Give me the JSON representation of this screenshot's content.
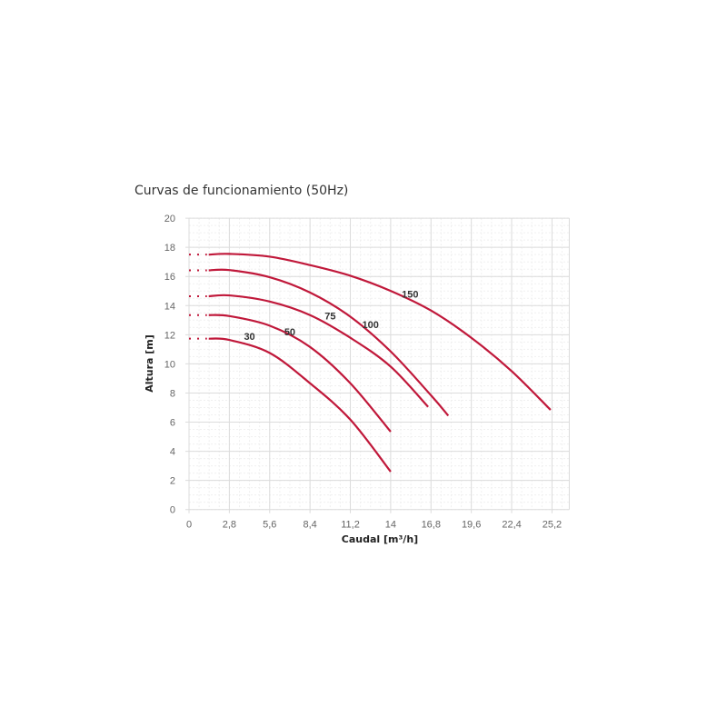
{
  "chart_data": {
    "type": "line",
    "title": "Curvas de funcionamiento (50Hz)",
    "xlabel": "Caudal [m³/h]",
    "ylabel": "Altura [m]",
    "xlim": [
      0,
      26.4
    ],
    "ylim": [
      0,
      20
    ],
    "xticks": [
      "0",
      "2,8",
      "5,6",
      "8,4",
      "11,2",
      "14",
      "16,8",
      "19,6",
      "22,4",
      "25,2"
    ],
    "yticks": [
      "0",
      "2",
      "4",
      "6",
      "8",
      "10",
      "12",
      "14",
      "16",
      "18",
      "20"
    ],
    "grid": true,
    "line_color": "#c0183a",
    "dotted_extension_to_zero": true,
    "series": [
      {
        "name": "30",
        "label_at": [
          4.2,
          11.9
        ],
        "points": [
          [
            1.37,
            11.73
          ],
          [
            2.8,
            11.64
          ],
          [
            5.6,
            10.75
          ],
          [
            8.4,
            8.67
          ],
          [
            11.2,
            6.17
          ],
          [
            14,
            2.6
          ]
        ]
      },
      {
        "name": "50",
        "label_at": [
          7.0,
          12.2
        ],
        "points": [
          [
            1.37,
            13.35
          ],
          [
            2.8,
            13.28
          ],
          [
            5.6,
            12.62
          ],
          [
            8.4,
            11.16
          ],
          [
            11.2,
            8.67
          ],
          [
            14,
            5.34
          ]
        ]
      },
      {
        "name": "75",
        "label_at": [
          9.8,
          13.3
        ],
        "points": [
          [
            1.37,
            14.64
          ],
          [
            2.8,
            14.7
          ],
          [
            5.6,
            14.28
          ],
          [
            8.4,
            13.35
          ],
          [
            11.2,
            11.79
          ],
          [
            14,
            9.81
          ],
          [
            16.6,
            7.05
          ]
        ]
      },
      {
        "name": "100",
        "label_at": [
          12.6,
          12.7
        ],
        "points": [
          [
            1.37,
            16.42
          ],
          [
            2.8,
            16.44
          ],
          [
            5.6,
            15.95
          ],
          [
            8.4,
            14.9
          ],
          [
            11.2,
            13.24
          ],
          [
            14,
            10.85
          ],
          [
            16.8,
            7.84
          ],
          [
            18.0,
            6.44
          ]
        ]
      },
      {
        "name": "150",
        "label_at": [
          15.35,
          14.8
        ],
        "points": [
          [
            1.37,
            17.5
          ],
          [
            2.8,
            17.55
          ],
          [
            5.6,
            17.36
          ],
          [
            8.4,
            16.78
          ],
          [
            11.2,
            16.05
          ],
          [
            14,
            15.01
          ],
          [
            16.8,
            13.66
          ],
          [
            19.6,
            11.79
          ],
          [
            22.4,
            9.5
          ],
          [
            25.1,
            6.84
          ]
        ]
      }
    ]
  }
}
